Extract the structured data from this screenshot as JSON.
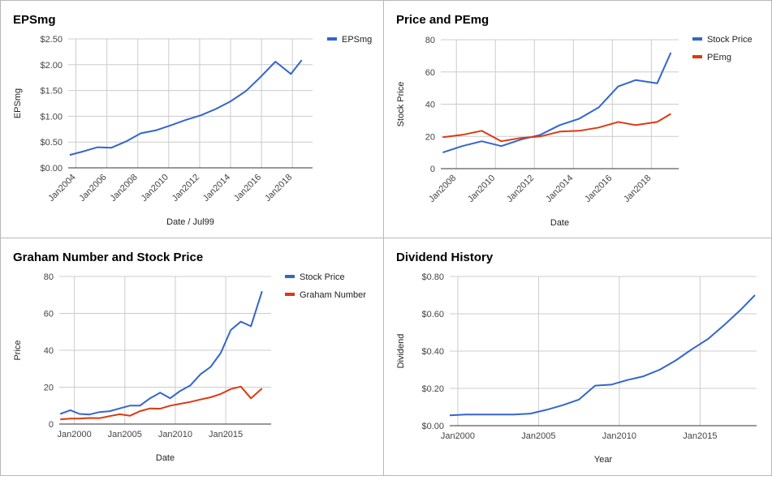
{
  "colors": {
    "blue": "#3366cc",
    "red": "#dc3912",
    "grid": "#cccccc",
    "axis": "#333333"
  },
  "chart_data": [
    {
      "type": "line",
      "title": "EPSmg",
      "xlabel": "Date / Jul99",
      "ylabel": "EPSmg",
      "grid": true,
      "legend_position": "right",
      "xlim": [
        2003.5,
        2019.3
      ],
      "ylim": [
        0,
        2.5
      ],
      "x_ticks": [
        2004,
        2006,
        2008,
        2010,
        2012,
        2014,
        2016,
        2018
      ],
      "x_tick_labels": [
        "Jan2004",
        "Jan2006",
        "Jan2008",
        "Jan2010",
        "Jan2012",
        "Jan2014",
        "Jan2016",
        "Jan2018"
      ],
      "y_ticks": [
        0,
        0.5,
        1,
        1.5,
        2,
        2.5
      ],
      "y_tick_labels": [
        "$0.00",
        "$0.50",
        "$1.00",
        "$1.50",
        "$2.00",
        "$2.50"
      ],
      "series": [
        {
          "name": "EPSmg",
          "color": "#3366cc",
          "points": [
            [
              2003.6,
              0.25
            ],
            [
              2004.5,
              0.32
            ],
            [
              2005.4,
              0.4
            ],
            [
              2006.3,
              0.39
            ],
            [
              2007.3,
              0.52
            ],
            [
              2008.2,
              0.67
            ],
            [
              2009.2,
              0.73
            ],
            [
              2010.1,
              0.82
            ],
            [
              2011.1,
              0.93
            ],
            [
              2012.1,
              1.02
            ],
            [
              2013.1,
              1.15
            ],
            [
              2014.0,
              1.29
            ],
            [
              2015.0,
              1.49
            ],
            [
              2015.9,
              1.75
            ],
            [
              2016.9,
              2.06
            ],
            [
              2017.9,
              1.82
            ],
            [
              2018.6,
              2.09
            ]
          ]
        }
      ]
    },
    {
      "type": "line",
      "title": "Price and PEmg",
      "xlabel": "Date",
      "ylabel": "Stock Price",
      "grid": true,
      "legend_position": "right",
      "xlim": [
        2007.2,
        2019.4
      ],
      "ylim": [
        0,
        80
      ],
      "x_ticks": [
        2008,
        2010,
        2012,
        2014,
        2016,
        2018
      ],
      "x_tick_labels": [
        "Jan2008",
        "Jan2010",
        "Jan2012",
        "Jan2014",
        "Jan2016",
        "Jan2018"
      ],
      "y_ticks": [
        0,
        20,
        40,
        60,
        80
      ],
      "y_tick_labels": [
        "0",
        "20",
        "40",
        "60",
        "80"
      ],
      "series": [
        {
          "name": "Stock Price",
          "color": "#3366cc",
          "points": [
            [
              2007.3,
              10
            ],
            [
              2008.3,
              14
            ],
            [
              2009.3,
              17
            ],
            [
              2010.3,
              14
            ],
            [
              2011.3,
              18
            ],
            [
              2012.3,
              21
            ],
            [
              2013.3,
              27
            ],
            [
              2014.3,
              31
            ],
            [
              2015.3,
              38
            ],
            [
              2016.3,
              51
            ],
            [
              2017.2,
              55
            ],
            [
              2018.3,
              53
            ],
            [
              2019.0,
              72
            ]
          ]
        },
        {
          "name": "PEmg",
          "color": "#dc3912",
          "points": [
            [
              2007.3,
              19.5
            ],
            [
              2008.3,
              21
            ],
            [
              2009.3,
              23.5
            ],
            [
              2010.3,
              17
            ],
            [
              2011.3,
              19
            ],
            [
              2012.3,
              20
            ],
            [
              2013.3,
              23
            ],
            [
              2014.3,
              23.5
            ],
            [
              2015.3,
              25.5
            ],
            [
              2016.3,
              29
            ],
            [
              2017.2,
              27
            ],
            [
              2018.3,
              29
            ],
            [
              2019.0,
              34
            ]
          ]
        }
      ]
    },
    {
      "type": "line",
      "title": "Graham Number and Stock Price",
      "xlabel": "Date",
      "ylabel": "Price",
      "grid": true,
      "legend_position": "right",
      "xlim": [
        1998.5,
        2019.5
      ],
      "ylim": [
        0,
        80
      ],
      "x_ticks": [
        2000,
        2005,
        2010,
        2015
      ],
      "x_tick_labels": [
        "Jan2000",
        "Jan2005",
        "Jan2010",
        "Jan2015"
      ],
      "y_ticks": [
        0,
        20,
        40,
        60,
        80
      ],
      "y_tick_labels": [
        "0",
        "20",
        "40",
        "60",
        "80"
      ],
      "series": [
        {
          "name": "Stock Price",
          "color": "#3366cc",
          "points": [
            [
              1998.6,
              5.5
            ],
            [
              1999.6,
              7.5
            ],
            [
              2000.5,
              5.5
            ],
            [
              2001.5,
              5.2
            ],
            [
              2002.5,
              6.5
            ],
            [
              2003.5,
              7
            ],
            [
              2004.5,
              8.5
            ],
            [
              2005.5,
              10
            ],
            [
              2006.5,
              10
            ],
            [
              2007.5,
              14
            ],
            [
              2008.5,
              17
            ],
            [
              2009.5,
              14
            ],
            [
              2010.5,
              18
            ],
            [
              2011.5,
              21
            ],
            [
              2012.5,
              27
            ],
            [
              2013.5,
              31
            ],
            [
              2014.5,
              38.5
            ],
            [
              2015.5,
              51
            ],
            [
              2016.5,
              55.5
            ],
            [
              2017.5,
              53
            ],
            [
              2018.6,
              72
            ]
          ]
        },
        {
          "name": "Graham Number",
          "color": "#dc3912",
          "points": [
            [
              1998.6,
              2.5
            ],
            [
              1999.6,
              3
            ],
            [
              2000.5,
              3
            ],
            [
              2001.5,
              3.3
            ],
            [
              2002.5,
              3.2
            ],
            [
              2003.5,
              4.3
            ],
            [
              2004.5,
              5.3
            ],
            [
              2005.5,
              4.5
            ],
            [
              2006.5,
              7
            ],
            [
              2007.5,
              8.5
            ],
            [
              2008.5,
              8.3
            ],
            [
              2009.5,
              10
            ],
            [
              2010.5,
              11
            ],
            [
              2011.5,
              12
            ],
            [
              2012.5,
              13.3
            ],
            [
              2013.5,
              14.5
            ],
            [
              2014.5,
              16.3
            ],
            [
              2015.5,
              19
            ],
            [
              2016.5,
              20.3
            ],
            [
              2017.5,
              14
            ],
            [
              2018.6,
              19.3
            ]
          ]
        }
      ]
    },
    {
      "type": "line",
      "title": "Dividend History",
      "xlabel": "Year",
      "ylabel": "Dividend",
      "grid": true,
      "legend_position": "none",
      "xlim": [
        1999.5,
        2018.5
      ],
      "ylim": [
        0,
        0.8
      ],
      "x_ticks": [
        2000,
        2005,
        2010,
        2015
      ],
      "x_tick_labels": [
        "Jan2000",
        "Jan2005",
        "Jan2010",
        "Jan2015"
      ],
      "y_ticks": [
        0,
        0.2,
        0.4,
        0.6,
        0.8
      ],
      "y_tick_labels": [
        "$0.00",
        "$0.20",
        "$0.40",
        "$0.60",
        "$0.80"
      ],
      "series": [
        {
          "name": "",
          "color": "#3366cc",
          "points": [
            [
              1999.5,
              0.055
            ],
            [
              2000.5,
              0.06
            ],
            [
              2001.5,
              0.06
            ],
            [
              2002.5,
              0.06
            ],
            [
              2003.5,
              0.06
            ],
            [
              2004.5,
              0.065
            ],
            [
              2005.5,
              0.085
            ],
            [
              2006.5,
              0.11
            ],
            [
              2007.5,
              0.14
            ],
            [
              2008.5,
              0.215
            ],
            [
              2009.5,
              0.22
            ],
            [
              2010.5,
              0.245
            ],
            [
              2011.5,
              0.265
            ],
            [
              2012.5,
              0.3
            ],
            [
              2013.5,
              0.35
            ],
            [
              2014.5,
              0.41
            ],
            [
              2015.5,
              0.465
            ],
            [
              2016.5,
              0.54
            ],
            [
              2017.5,
              0.62
            ],
            [
              2018.4,
              0.7
            ]
          ]
        }
      ]
    }
  ]
}
